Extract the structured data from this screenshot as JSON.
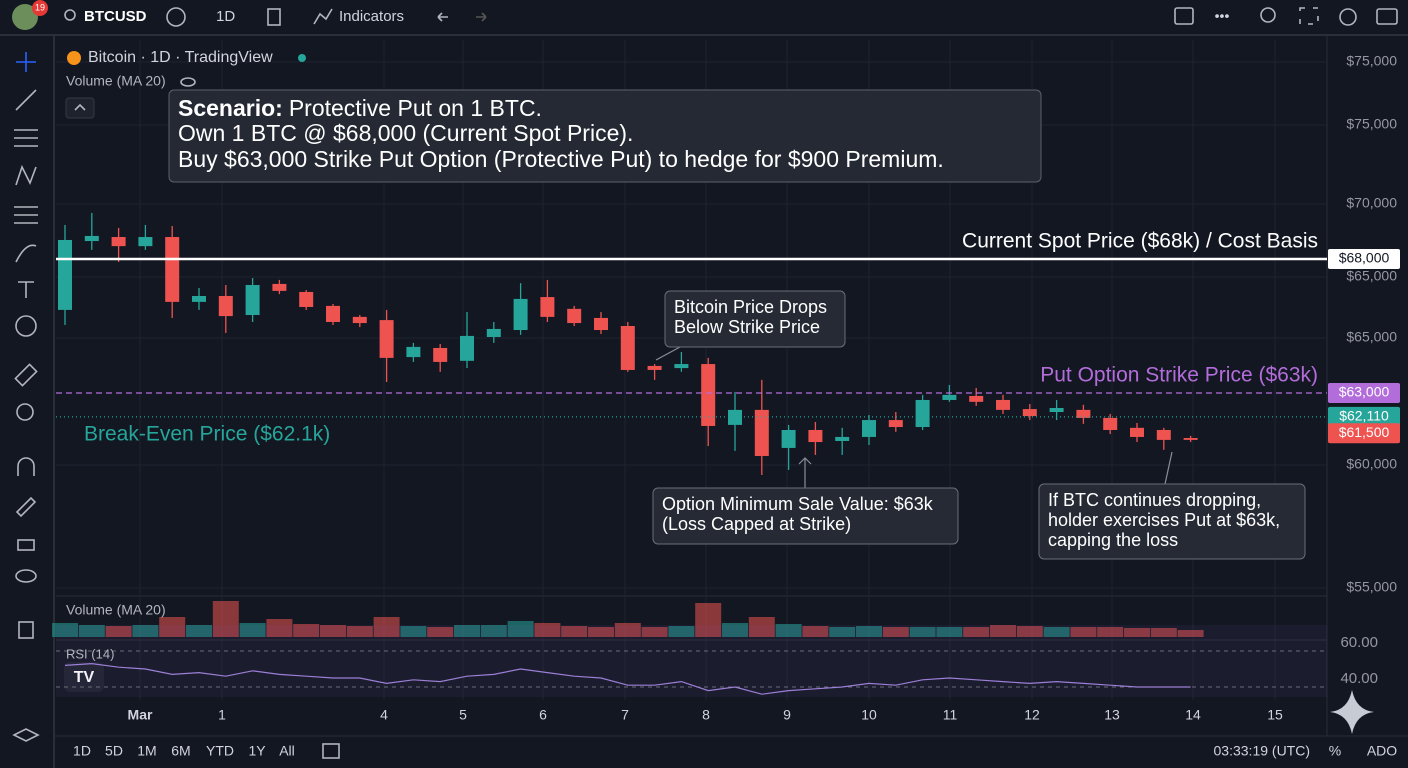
{
  "toolbar": {
    "badge": "19",
    "symbol": "BTCUSD",
    "interval": "1D",
    "indicators": "Indicators"
  },
  "legend": {
    "title": "Bitcoin · 1D · TradingView",
    "volume": "Volume (MA 20)"
  },
  "scenario": {
    "heading": "Scenario:",
    "line1": "Protective Put on 1 BTC.",
    "line2": "Own 1 BTC @ $68,000 (Current Spot Price).",
    "line3": "Buy $63,000 Strike Put Option (Protective Put) to hedge for $900 Premium."
  },
  "annotations": {
    "drop": [
      "Bitcoin Price Drops",
      "Below Strike Price"
    ],
    "minimum": [
      "Option Minimum Sale Value: $63k",
      "(Loss Capped at Strike)"
    ],
    "exercise": [
      "If BTC continues dropping,",
      "holder exercises Put at $63k,",
      "capping the loss"
    ]
  },
  "price_axis": [
    "$75,000",
    "$75,000",
    "$70,000",
    "$65,000",
    "$65,000",
    "$60,000",
    "$55,000"
  ],
  "levels": [
    {
      "name": "Current Spot Price ($68k) / Cost Basis",
      "value": 68000,
      "label": "$68,000",
      "color": "#ffffff",
      "style": "solid"
    },
    {
      "name": "Put Option Strike Price ($63k)",
      "value": 63000,
      "label": "$63,000",
      "color": "#b36ddb",
      "style": "dashed"
    },
    {
      "name": "Break-Even Price ($62.1k)",
      "value": 62110,
      "label": "$62,110",
      "color": "#26a69a",
      "style": "dotted"
    },
    {
      "value": 61500,
      "label": "$61,500",
      "color": "#ef5350",
      "style": "none"
    }
  ],
  "candles": {
    "up_color": "#26a69a",
    "down_color": "#ef5350",
    "open": [
      66100,
      68670,
      68820,
      68480,
      68820,
      66400,
      66620,
      65910,
      67070,
      66770,
      66250,
      65840,
      65720,
      64340,
      64680,
      64200,
      65090,
      65350,
      66580,
      66140,
      65800,
      65500,
      64010,
      63930,
      64080,
      61810,
      62370,
      60950,
      61620,
      61210,
      61360,
      61990,
      61730,
      62740,
      62890,
      62740,
      62400,
      62290,
      62370,
      62070,
      61700,
      61620,
      61320
    ],
    "high": [
      69270,
      69720,
      69160,
      69270,
      69230,
      66920,
      67030,
      67290,
      67220,
      66840,
      66320,
      65910,
      66100,
      64870,
      64830,
      66020,
      65650,
      67100,
      67220,
      66250,
      66020,
      65650,
      64080,
      64530,
      64310,
      63040,
      63490,
      61810,
      61920,
      61700,
      62180,
      62290,
      62930,
      63300,
      63190,
      62930,
      62590,
      62740,
      62560,
      62220,
      61880,
      61700,
      61400
    ],
    "low": [
      65540,
      68340,
      67890,
      68340,
      65800,
      66100,
      65240,
      65650,
      66690,
      66100,
      65540,
      65460,
      63410,
      64160,
      63790,
      63930,
      64870,
      65170,
      65650,
      65500,
      65200,
      63790,
      63490,
      63790,
      61020,
      60840,
      59940,
      60130,
      60690,
      60690,
      61060,
      61550,
      61620,
      62670,
      62520,
      62220,
      61990,
      61990,
      61850,
      61470,
      61170,
      60880,
      61170
    ],
    "close": [
      68710,
      68860,
      68480,
      68820,
      66400,
      66620,
      65870,
      67030,
      66810,
      66210,
      65650,
      65610,
      64310,
      64720,
      64160,
      65130,
      65390,
      66510,
      65840,
      65610,
      65350,
      63860,
      63860,
      64080,
      61770,
      62370,
      60650,
      61620,
      61170,
      61360,
      61990,
      61730,
      62740,
      62930,
      62670,
      62370,
      62140,
      62440,
      62070,
      61620,
      61360,
      61250,
      61250
    ]
  },
  "volume": {
    "label": "Volume (MA 20)",
    "values": [
      14,
      12,
      11,
      12,
      20,
      12,
      36,
      14,
      18,
      13,
      12,
      11,
      20,
      11,
      10,
      12,
      12,
      16,
      14,
      11,
      10,
      14,
      10,
      11,
      34,
      14,
      20,
      13,
      11,
      10,
      11,
      10,
      10,
      10,
      10,
      12,
      11,
      10,
      10,
      10,
      9,
      9,
      7
    ]
  },
  "rsi": {
    "label": "RSI (14)",
    "values": [
      52,
      53,
      51,
      50,
      47,
      48,
      46,
      49,
      47,
      46,
      45,
      45,
      42,
      44,
      43,
      46,
      47,
      50,
      48,
      46,
      45,
      41,
      41,
      43,
      38,
      40,
      36,
      38,
      39,
      40,
      42,
      41,
      44,
      45,
      44,
      43,
      42,
      43,
      42,
      41,
      40,
      40,
      40
    ],
    "ticks": [
      {
        "value": 60,
        "label": "60.00"
      },
      {
        "value": 40,
        "label": "40.00"
      }
    ]
  },
  "time_axis": [
    "Mar",
    "1",
    "4",
    "5",
    "6",
    "7",
    "8",
    "9",
    "10",
    "11",
    "12",
    "13",
    "14",
    "15"
  ],
  "bottom_bar": {
    "ranges": [
      "1D",
      "5D",
      "1M",
      "6M",
      "YTD",
      "1Y",
      "All"
    ],
    "clock": "03:33:19 (UTC)",
    "percent": "%",
    "adj": "ADO"
  }
}
